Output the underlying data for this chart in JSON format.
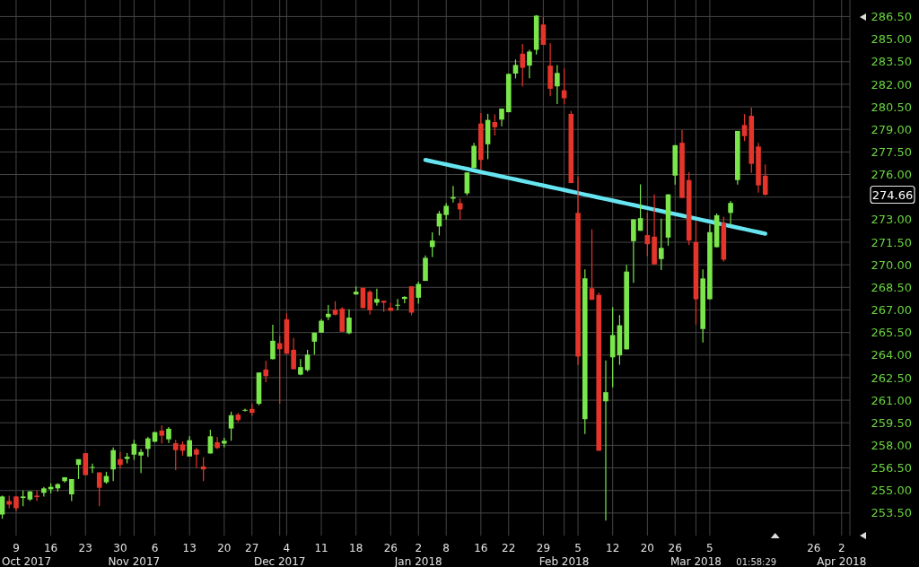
{
  "chart_data": {
    "type": "candlestick",
    "categories": [
      null,
      null,
      "9",
      null,
      null,
      null,
      null,
      "16",
      null,
      null,
      null,
      null,
      "23",
      null,
      null,
      null,
      null,
      "30",
      null,
      "\nNov 2017",
      null,
      null,
      "6",
      null,
      null,
      null,
      null,
      "13",
      null,
      null,
      null,
      null,
      "20",
      null,
      null,
      null,
      "27",
      null,
      null,
      null,
      "\nDec 2017",
      "4",
      null,
      null,
      null,
      null,
      "11",
      null,
      null,
      null,
      null,
      "18",
      null,
      null,
      null,
      null,
      "26",
      null,
      null,
      null,
      "2\nJan 2018",
      null,
      null,
      null,
      "8",
      null,
      null,
      null,
      null,
      "16",
      null,
      null,
      null,
      "22",
      null,
      null,
      null,
      null,
      "29",
      null,
      null,
      "\nFeb 2018",
      null,
      "5",
      null,
      null,
      null,
      null,
      "12",
      null,
      null,
      null,
      null,
      "20",
      null,
      null,
      null,
      "26",
      null,
      null,
      "\nMar 2018",
      null,
      "5",
      null,
      null,
      null,
      null,
      null,
      null,
      null,
      null,
      null,
      null,
      null,
      null,
      null,
      null,
      "26",
      null,
      null,
      null,
      "2\nApr 2018",
      null
    ],
    "ohlc": [
      [
        253.4,
        254.66,
        253.12,
        254.6
      ],
      [
        254.3,
        254.66,
        253.82,
        254.06
      ],
      [
        254.6,
        254.62,
        253.62,
        253.82
      ],
      [
        254.5,
        255.0,
        253.96,
        254.6
      ],
      [
        254.4,
        254.94,
        254.3,
        254.94
      ],
      [
        254.66,
        255.0,
        254.3,
        254.56
      ],
      [
        254.84,
        255.24,
        254.6,
        255.14
      ],
      [
        255.08,
        255.48,
        254.8,
        255.24
      ],
      [
        255.14,
        255.48,
        254.94,
        255.42
      ],
      [
        255.62,
        255.88,
        255.52,
        255.88
      ],
      [
        254.74,
        255.76,
        254.3,
        255.76
      ],
      [
        256.7,
        257.08,
        255.76,
        257.08
      ],
      [
        257.48,
        257.48,
        256.02,
        256.02
      ],
      [
        256.5,
        256.78,
        256.16,
        256.56
      ],
      [
        256.2,
        256.2,
        253.96,
        255.18
      ],
      [
        255.54,
        256.24,
        255.44,
        255.96
      ],
      [
        256.4,
        257.86,
        255.62,
        257.68
      ],
      [
        257.08,
        257.56,
        256.46,
        256.7
      ],
      [
        257.1,
        257.48,
        256.8,
        257.24
      ],
      [
        257.38,
        258.36,
        257.04,
        258.1
      ],
      [
        257.32,
        257.76,
        256.16,
        257.56
      ],
      [
        257.76,
        258.56,
        257.24,
        258.46
      ],
      [
        258.24,
        258.88,
        258.2,
        258.88
      ],
      [
        258.98,
        259.32,
        258.12,
        258.64
      ],
      [
        258.4,
        259.22,
        258.16,
        259.1
      ],
      [
        258.14,
        258.36,
        256.36,
        257.68
      ],
      [
        258.06,
        258.26,
        257.32,
        257.64
      ],
      [
        257.26,
        258.6,
        257.26,
        258.34
      ],
      [
        257.72,
        257.84,
        256.5,
        257.38
      ],
      [
        256.6,
        257.22,
        255.62,
        256.4
      ],
      [
        257.46,
        259.04,
        257.46,
        258.6
      ],
      [
        258.2,
        258.56,
        257.76,
        257.82
      ],
      [
        258.12,
        258.5,
        257.86,
        258.3
      ],
      [
        259.12,
        260.24,
        258.3,
        260.0
      ],
      [
        260.04,
        260.16,
        259.56,
        259.68
      ],
      [
        260.32,
        260.44,
        260.24,
        260.36
      ],
      [
        260.42,
        260.76,
        259.96,
        260.16
      ],
      [
        260.76,
        262.84,
        260.66,
        262.84
      ],
      [
        263.04,
        263.61,
        262.2,
        262.6
      ],
      [
        263.73,
        266.02,
        263.7,
        264.95
      ],
      [
        264.79,
        265.29,
        260.76,
        264.39
      ],
      [
        266.38,
        266.78,
        264.09,
        264.09
      ],
      [
        264.35,
        265.13,
        263.06,
        263.06
      ],
      [
        262.7,
        263.73,
        262.66,
        263.2
      ],
      [
        263.0,
        264.35,
        262.9,
        264.03
      ],
      [
        264.89,
        265.49,
        264.03,
        265.49
      ],
      [
        265.49,
        266.38,
        265.49,
        266.28
      ],
      [
        266.52,
        267.32,
        266.32,
        266.74
      ],
      [
        267.02,
        267.58,
        266.64,
        266.68
      ],
      [
        267.08,
        267.18,
        265.55,
        265.55
      ],
      [
        265.45,
        267.04,
        265.39,
        266.49
      ],
      [
        268.03,
        268.57,
        268.01,
        268.21
      ],
      [
        268.47,
        268.47,
        267.12,
        267.12
      ],
      [
        268.21,
        268.31,
        266.68,
        266.98
      ],
      [
        267.48,
        268.41,
        267.28,
        267.73
      ],
      [
        267.61,
        267.61,
        266.88,
        267.48
      ],
      [
        267.14,
        267.48,
        266.94,
        266.94
      ],
      [
        267.28,
        267.73,
        266.98,
        267.34
      ],
      [
        267.73,
        267.91,
        267.44,
        267.87
      ],
      [
        268.57,
        268.57,
        266.64,
        266.82
      ],
      [
        267.81,
        268.87,
        267.42,
        268.73
      ],
      [
        268.93,
        270.62,
        268.93,
        270.46
      ],
      [
        271.18,
        272.15,
        270.52,
        271.61
      ],
      [
        272.55,
        273.58,
        271.95,
        273.41
      ],
      [
        273.31,
        274.1,
        273.0,
        273.92
      ],
      [
        274.4,
        275.24,
        274.14,
        274.5
      ],
      [
        274.1,
        274.4,
        272.99,
        273.68
      ],
      [
        274.75,
        276.14,
        274.62,
        276.14
      ],
      [
        276.43,
        278.11,
        276.43,
        277.91
      ],
      [
        279.39,
        280.08,
        276.33,
        276.97
      ],
      [
        278.01,
        280.03,
        277.02,
        279.63
      ],
      [
        279.49,
        279.99,
        278.6,
        279.14
      ],
      [
        279.65,
        280.38,
        279.2,
        280.38
      ],
      [
        280.14,
        282.69,
        280.14,
        282.69
      ],
      [
        282.71,
        283.64,
        282.39,
        283.28
      ],
      [
        284.03,
        284.68,
        281.86,
        283.1
      ],
      [
        283.24,
        284.29,
        282.39,
        284.17
      ],
      [
        284.29,
        286.6,
        283.97,
        286.56
      ],
      [
        285.97,
        286.46,
        284.62,
        284.62
      ],
      [
        283.24,
        284.72,
        281.21,
        281.7
      ],
      [
        281.86,
        283.28,
        280.68,
        282.75
      ],
      [
        281.6,
        283.05,
        280.68,
        281.07
      ],
      [
        280.03,
        280.22,
        275.43,
        275.43
      ],
      [
        273.45,
        275.87,
        263.35,
        263.9
      ],
      [
        259.74,
        269.69,
        258.75,
        269.1
      ],
      [
        268.44,
        272.36,
        267.67,
        267.67
      ],
      [
        268.0,
        268.16,
        257.64,
        257.64
      ],
      [
        260.93,
        263.65,
        253.0,
        261.53
      ],
      [
        263.85,
        267.17,
        261.86,
        265.33
      ],
      [
        263.98,
        266.66,
        263.35,
        265.98
      ],
      [
        264.38,
        269.99,
        264.38,
        269.55
      ],
      [
        271.57,
        273.02,
        268.8,
        273.02
      ],
      [
        272.26,
        275.34,
        272.26,
        273.1
      ],
      [
        271.97,
        273.45,
        270.58,
        271.37
      ],
      [
        271.87,
        274.68,
        270.03,
        270.03
      ],
      [
        270.38,
        273.06,
        269.65,
        271.12
      ],
      [
        271.81,
        274.68,
        271.27,
        274.68
      ],
      [
        275.93,
        277.95,
        275.33,
        277.95
      ],
      [
        278.11,
        278.96,
        274.44,
        274.44
      ],
      [
        275.63,
        276.17,
        271.31,
        271.61
      ],
      [
        271.51,
        272.9,
        266.02,
        267.71
      ],
      [
        265.73,
        269.69,
        264.84,
        269.09
      ],
      [
        267.71,
        272.66,
        267.71,
        272.17
      ],
      [
        271.17,
        273.41,
        271.17,
        273.29
      ],
      [
        272.8,
        273.2,
        270.22,
        270.34
      ],
      [
        273.45,
        274.25,
        272.66,
        274.11
      ],
      [
        275.63,
        278.9,
        275.33,
        278.9
      ],
      [
        279.29,
        280.02,
        278.22,
        278.55
      ],
      [
        279.9,
        280.44,
        276.11,
        276.71
      ],
      [
        277.86,
        278.1,
        274.79,
        275.28
      ],
      [
        275.92,
        276.67,
        274.6,
        274.66
      ],
      null,
      null,
      null,
      null,
      null,
      null,
      null,
      null,
      null,
      null,
      null,
      null
    ],
    "colors": [
      "#7ae64c",
      "#e5352b",
      "#e5352b",
      "#7ae64c",
      "#7ae64c",
      "#e5352b",
      "#7ae64c",
      "#7ae64c",
      "#7ae64c",
      "#7ae64c",
      "#7ae64c",
      "#7ae64c",
      "#e5352b",
      "#7ae64c",
      "#e5352b",
      "#7ae64c",
      "#7ae64c",
      "#e5352b",
      "#7ae64c",
      "#7ae64c",
      "#7ae64c",
      "#7ae64c",
      "#7ae64c",
      "#e5352b",
      "#7ae64c",
      "#e5352b",
      "#e5352b",
      "#7ae64c",
      "#e5352b",
      "#e5352b",
      "#7ae64c",
      "#e5352b",
      "#7ae64c",
      "#7ae64c",
      "#e5352b",
      "#7ae64c",
      "#e5352b",
      "#7ae64c",
      "#e5352b",
      "#7ae64c",
      "#e5352b",
      "#e5352b",
      "#e5352b",
      "#7ae64c",
      "#7ae64c",
      "#7ae64c",
      "#7ae64c",
      "#7ae64c",
      "#e5352b",
      "#e5352b",
      "#7ae64c",
      "#7ae64c",
      "#e5352b",
      "#e5352b",
      "#7ae64c",
      "#e5352b",
      "#e5352b",
      "#7ae64c",
      "#7ae64c",
      "#e5352b",
      "#7ae64c",
      "#7ae64c",
      "#7ae64c",
      "#7ae64c",
      "#7ae64c",
      "#7ae64c",
      "#e5352b",
      "#7ae64c",
      "#7ae64c",
      "#e5352b",
      "#7ae64c",
      "#e5352b",
      "#7ae64c",
      "#7ae64c",
      "#7ae64c",
      "#e5352b",
      "#7ae64c",
      "#7ae64c",
      "#e5352b",
      "#e5352b",
      "#7ae64c",
      "#e5352b",
      "#e5352b",
      "#e5352b",
      "#7ae64c",
      "#e5352b",
      "#e5352b",
      "#7ae64c",
      "#7ae64c",
      "#7ae64c",
      "#7ae64c",
      "#7ae64c",
      "#7ae64c",
      "#e5352b",
      "#e5352b",
      "#7ae64c",
      "#7ae64c",
      "#7ae64c",
      "#e5352b",
      "#e5352b",
      "#e5352b",
      "#7ae64c",
      "#7ae64c",
      "#7ae64c",
      "#e5352b",
      "#7ae64c",
      "#7ae64c",
      "#e5352b",
      "#e5352b",
      "#e5352b",
      "#e5352b",
      null,
      null,
      null,
      null,
      null,
      null,
      null,
      null,
      null,
      null,
      null,
      null
    ],
    "ylim": [
      252,
      287.6
    ],
    "yticks": [
      {
        "value": 286.5,
        "label": "286.50"
      },
      {
        "value": 285,
        "label": "285.00"
      },
      {
        "value": 283.5,
        "label": "283.50"
      },
      {
        "value": 282,
        "label": "282.00"
      },
      {
        "value": 280.5,
        "label": "280.50"
      },
      {
        "value": 279,
        "label": "279.00"
      },
      {
        "value": 277.5,
        "label": "277.50"
      },
      {
        "value": 276,
        "label": "276.00"
      },
      {
        "value": 274.5,
        "label": null
      },
      {
        "value": 273,
        "label": "273.00"
      },
      {
        "value": 271.5,
        "label": "271.50"
      },
      {
        "value": 270,
        "label": "270.00"
      },
      {
        "value": 268.5,
        "label": "268.50"
      },
      {
        "value": 267,
        "label": "267.00"
      },
      {
        "value": 265.5,
        "label": "265.50"
      },
      {
        "value": 264,
        "label": "264.00"
      },
      {
        "value": 262.5,
        "label": "262.50"
      },
      {
        "value": 261,
        "label": "261.00"
      },
      {
        "value": 259.5,
        "label": "259.50"
      },
      {
        "value": 258,
        "label": "258.00"
      },
      {
        "value": 256.5,
        "label": "256.50"
      },
      {
        "value": 255,
        "label": "255.00"
      },
      {
        "value": 253.5,
        "label": "253.50"
      }
    ],
    "grid": true,
    "series": [
      {
        "type": "line",
        "color": "#66e4f0",
        "values": [
          null,
          null,
          null,
          null,
          null,
          null,
          null,
          null,
          null,
          null,
          null,
          null,
          null,
          null,
          null,
          null,
          null,
          null,
          null,
          null,
          null,
          null,
          null,
          null,
          null,
          null,
          null,
          null,
          null,
          null,
          null,
          null,
          null,
          null,
          null,
          null,
          null,
          null,
          null,
          null,
          null,
          null,
          null,
          null,
          null,
          null,
          null,
          null,
          null,
          null,
          null,
          null,
          null,
          null,
          null,
          null,
          null,
          null,
          null,
          null,
          null,
          276.97,
          276.87,
          276.77,
          276.67,
          276.57,
          276.47,
          276.37,
          276.27,
          276.17,
          276.07,
          275.97,
          275.87,
          275.77,
          275.67,
          275.57,
          275.47,
          275.37,
          275.27,
          275.17,
          275.07,
          274.97,
          274.87,
          274.77,
          274.67,
          274.57,
          274.47,
          274.37,
          274.27,
          274.17,
          274.07,
          273.97,
          273.87,
          273.77,
          273.67,
          273.57,
          273.47,
          273.37,
          273.27,
          273.17,
          273.07,
          272.97,
          272.87,
          272.77,
          272.67,
          272.57,
          272.47,
          272.37,
          272.27,
          272.17,
          272.07,
          null,
          null,
          null,
          null,
          null,
          null,
          null,
          null,
          null,
          null,
          null,
          null
        ]
      }
    ],
    "annotations": [
      "274.66",
      "01:58:29",
      "Oct 2017"
    ]
  }
}
